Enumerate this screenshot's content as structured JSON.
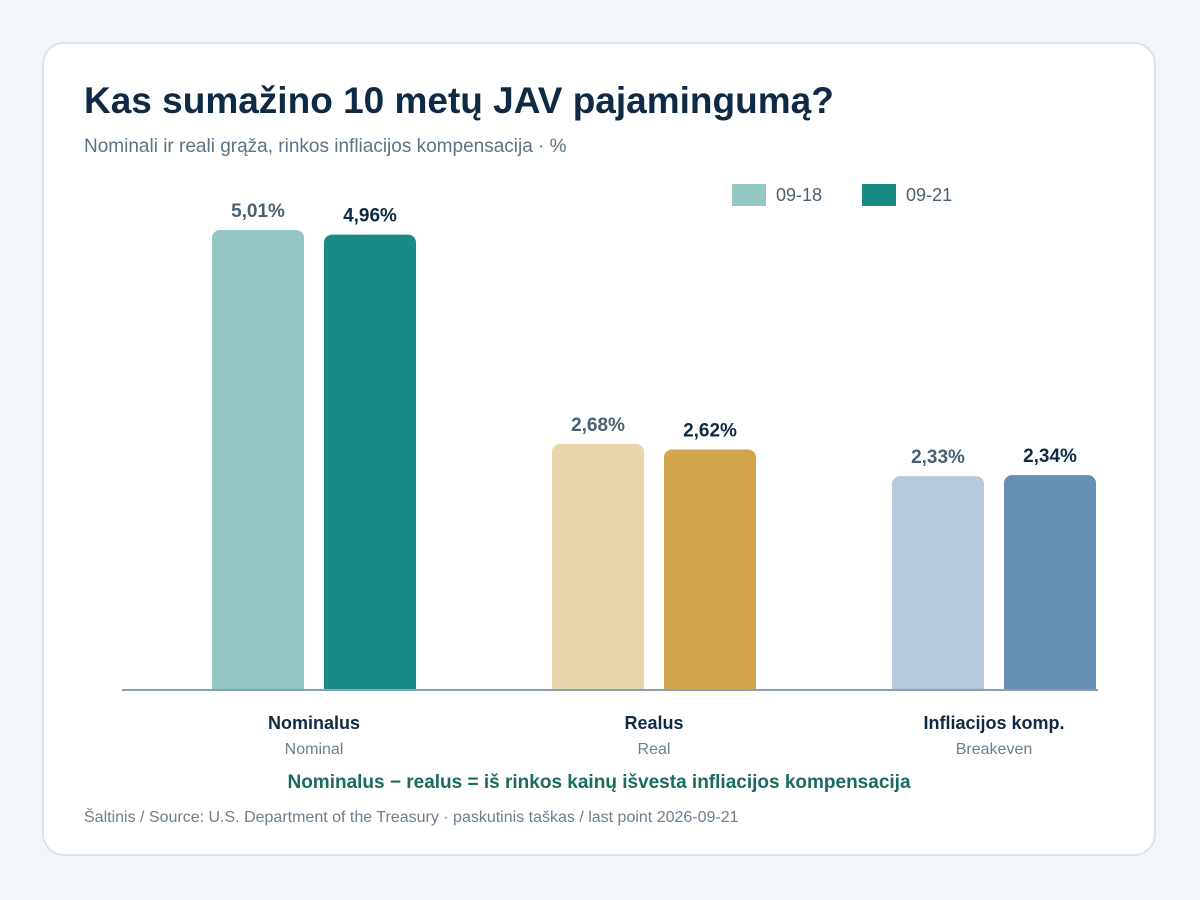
{
  "title": "Kas sumažino 10 metų JAV pajamingumą?",
  "subtitle": "Nominali ir reali grąža, rinkos infliacijos kompensacija · %",
  "legend": [
    {
      "label": "09-18",
      "color": "#93c7c4"
    },
    {
      "label": "09-21",
      "color": "#178b84"
    }
  ],
  "note": "Nominalus − realus = iš rinkos kainų išvesta infliacijos kompensacija",
  "source": "Šaltinis / Source: U.S. Department of the Treasury · paskutinis taškas / last point 2026-09-21",
  "chart_data": {
    "type": "bar",
    "series_names": [
      "09-18",
      "09-21"
    ],
    "ylim": [
      0,
      5.6
    ],
    "grid": false,
    "legend_position": "top-right",
    "groups": [
      {
        "label": "Nominalus",
        "sublabel": "Nominal",
        "values": [
          5.01,
          4.96
        ],
        "value_labels": [
          "5,01%",
          "4,96%"
        ],
        "colors": [
          "#93c7c4",
          "#178b84"
        ]
      },
      {
        "label": "Realus",
        "sublabel": "Real",
        "values": [
          2.68,
          2.62
        ],
        "value_labels": [
          "2,68%",
          "2,62%"
        ],
        "colors": [
          "#e9d5ac",
          "#d3a64e"
        ]
      },
      {
        "label": "Infliacijos komp.",
        "sublabel": "Breakeven",
        "values": [
          2.33,
          2.34
        ],
        "value_labels": [
          "2,33%",
          "2,34%"
        ],
        "colors": [
          "#b7cadb",
          "#678fb3"
        ]
      }
    ]
  }
}
